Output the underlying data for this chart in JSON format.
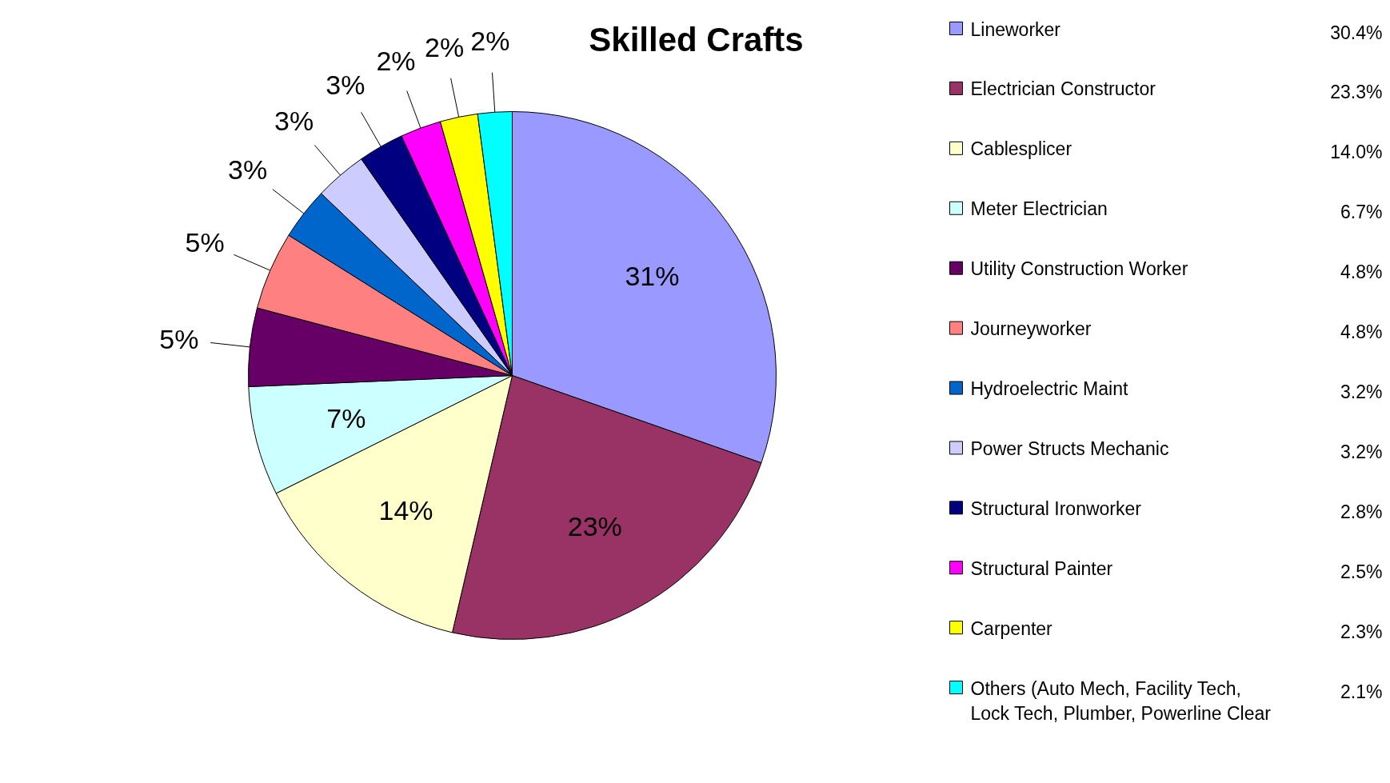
{
  "chart_data": {
    "type": "pie",
    "title": "Skilled Crafts",
    "categories": [
      "Lineworker",
      "Electrician Constructor",
      "Cablesplicer",
      "Meter Electrician",
      "Utility Construction Worker",
      "Journeyworker",
      "Hydroelectric Maint",
      "Power Structs Mechanic",
      "Structural Ironworker",
      "Structural Painter",
      "Carpenter",
      "Others (Auto Mech, Facility Tech, Lock Tech, Plumber, Powerline Clear"
    ],
    "values": [
      30.4,
      23.3,
      14.0,
      6.7,
      4.8,
      4.8,
      3.2,
      3.2,
      2.8,
      2.5,
      2.3,
      2.1
    ],
    "value_labels": [
      "30.4%",
      "23.3%",
      "14.0%",
      "6.7%",
      "4.8%",
      "4.8%",
      "3.2%",
      "3.2%",
      "2.8%",
      "2.5%",
      "2.3%",
      "2.1%"
    ],
    "annotations": [
      "31%",
      "23%",
      "14%",
      "7%",
      "5%",
      "5%",
      "3%",
      "3%",
      "3%",
      "2%",
      "2%",
      "2%"
    ],
    "colors": [
      "#9999ff",
      "#993366",
      "#ffffcc",
      "#ccffff",
      "#660066",
      "#ff8080",
      "#0066cc",
      "#ccccff",
      "#000080",
      "#ff00ff",
      "#ffff00",
      "#00ffff"
    ],
    "legend": "right"
  }
}
